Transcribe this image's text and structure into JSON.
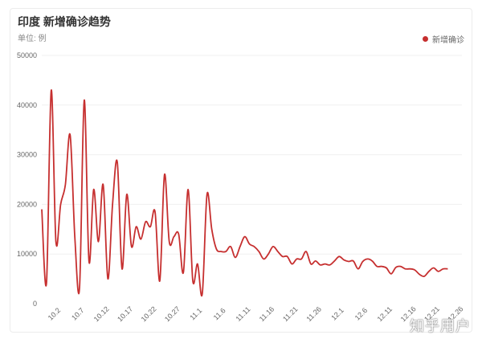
{
  "watermark": "知乎用户",
  "chart_data": {
    "type": "line",
    "title": "印度 新增确诊趋势",
    "unit_label": "单位: 例",
    "legend": [
      {
        "name": "新增确诊",
        "color": "#c62f2f"
      }
    ],
    "legend_position": "top-right",
    "series_color": "#c62f2f",
    "ylim": [
      0,
      50000
    ],
    "yticks": [
      0,
      10000,
      20000,
      30000,
      40000,
      50000
    ],
    "grid": true,
    "x_tick_labels": [
      "10.2",
      "10.7",
      "10.12",
      "10.17",
      "10.22",
      "10.27",
      "11.1",
      "11.6",
      "11.11",
      "11.16",
      "11.21",
      "11.26",
      "12.1",
      "12.6",
      "12.11",
      "12.16",
      "12.21",
      "12.26"
    ],
    "x_tick_positions": [
      3,
      8,
      13,
      18,
      23,
      28,
      33,
      38,
      43,
      48,
      53,
      58,
      63,
      68,
      73,
      78,
      83,
      88
    ],
    "x_range": [
      0,
      89
    ],
    "values": [
      19000,
      4200,
      43000,
      12500,
      20000,
      24000,
      34000,
      13500,
      3200,
      41000,
      8500,
      23000,
      12500,
      24000,
      5000,
      20000,
      28500,
      7000,
      22000,
      11500,
      15500,
      13000,
      16500,
      15500,
      18500,
      4600,
      26000,
      12500,
      13500,
      14000,
      6300,
      23000,
      4600,
      8000,
      2000,
      22000,
      15000,
      11000,
      10500,
      10500,
      11500,
      9300,
      11500,
      13500,
      12000,
      11500,
      10500,
      9000,
      10000,
      11500,
      10500,
      9500,
      9500,
      8000,
      9000,
      9000,
      10500,
      8000,
      8600,
      7800,
      8000,
      7800,
      8600,
      9500,
      8800,
      8500,
      8600,
      7000,
      8500,
      9000,
      8600,
      7500,
      7500,
      7200,
      6000,
      7300,
      7500,
      7000,
      7000,
      6800,
      5900,
      5500,
      6500,
      7200,
      6500,
      7000,
      7000
    ]
  }
}
